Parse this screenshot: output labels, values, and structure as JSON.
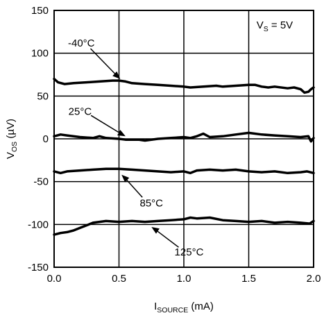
{
  "chart_data": {
    "type": "line",
    "xlabel": {
      "main": "I",
      "sub": "SOURCE",
      "unit": " (mA)"
    },
    "ylabel": {
      "main": "V",
      "sub": "OS",
      "unit": " (µV)"
    },
    "xlim": [
      0,
      2.0
    ],
    "ylim": [
      -150,
      150
    ],
    "x_ticks": [
      "0.0",
      "0.5",
      "1.0",
      "1.5",
      "2.0"
    ],
    "y_ticks": [
      "150",
      "100",
      "50",
      "0",
      "-50",
      "-100",
      "-150"
    ],
    "grid": true,
    "annotation": {
      "main": "V",
      "sub": "S",
      "rest": " = 5V"
    },
    "series": [
      {
        "name": "-40°C",
        "points": [
          [
            0.0,
            70
          ],
          [
            0.03,
            66
          ],
          [
            0.08,
            64
          ],
          [
            0.15,
            65
          ],
          [
            0.25,
            66
          ],
          [
            0.35,
            67
          ],
          [
            0.45,
            68
          ],
          [
            0.5,
            68
          ],
          [
            0.55,
            67
          ],
          [
            0.6,
            65
          ],
          [
            0.7,
            64
          ],
          [
            0.8,
            63
          ],
          [
            0.9,
            62
          ],
          [
            1.0,
            61
          ],
          [
            1.05,
            60
          ],
          [
            1.15,
            61
          ],
          [
            1.25,
            62
          ],
          [
            1.3,
            61
          ],
          [
            1.4,
            62
          ],
          [
            1.5,
            63
          ],
          [
            1.55,
            63
          ],
          [
            1.6,
            61
          ],
          [
            1.65,
            60
          ],
          [
            1.7,
            61
          ],
          [
            1.8,
            59
          ],
          [
            1.85,
            60
          ],
          [
            1.9,
            58
          ],
          [
            1.93,
            54
          ],
          [
            1.96,
            55
          ],
          [
            1.98,
            58
          ],
          [
            2.0,
            60
          ]
        ]
      },
      {
        "name": "25°C",
        "points": [
          [
            0.0,
            3
          ],
          [
            0.05,
            5
          ],
          [
            0.1,
            4
          ],
          [
            0.2,
            2
          ],
          [
            0.3,
            1
          ],
          [
            0.35,
            3
          ],
          [
            0.4,
            1
          ],
          [
            0.5,
            0
          ],
          [
            0.55,
            -1
          ],
          [
            0.65,
            -1
          ],
          [
            0.7,
            -2
          ],
          [
            0.8,
            0
          ],
          [
            0.9,
            1
          ],
          [
            1.0,
            2
          ],
          [
            1.05,
            1
          ],
          [
            1.1,
            3
          ],
          [
            1.15,
            6
          ],
          [
            1.2,
            2
          ],
          [
            1.3,
            3
          ],
          [
            1.4,
            5
          ],
          [
            1.5,
            7
          ],
          [
            1.6,
            5
          ],
          [
            1.7,
            4
          ],
          [
            1.8,
            3
          ],
          [
            1.9,
            2
          ],
          [
            1.96,
            3
          ],
          [
            1.98,
            -3
          ],
          [
            2.0,
            1
          ]
        ]
      },
      {
        "name": "85°C",
        "points": [
          [
            0.0,
            -38
          ],
          [
            0.05,
            -40
          ],
          [
            0.1,
            -38
          ],
          [
            0.2,
            -37
          ],
          [
            0.3,
            -36
          ],
          [
            0.4,
            -35
          ],
          [
            0.5,
            -35
          ],
          [
            0.6,
            -36
          ],
          [
            0.7,
            -37
          ],
          [
            0.8,
            -38
          ],
          [
            0.9,
            -39
          ],
          [
            1.0,
            -38
          ],
          [
            1.05,
            -40
          ],
          [
            1.1,
            -37
          ],
          [
            1.2,
            -36
          ],
          [
            1.3,
            -37
          ],
          [
            1.4,
            -36
          ],
          [
            1.5,
            -38
          ],
          [
            1.6,
            -39
          ],
          [
            1.7,
            -38
          ],
          [
            1.8,
            -40
          ],
          [
            1.9,
            -39
          ],
          [
            1.95,
            -38
          ],
          [
            2.0,
            -40
          ]
        ]
      },
      {
        "name": "125°C",
        "points": [
          [
            0.0,
            -112
          ],
          [
            0.05,
            -110
          ],
          [
            0.1,
            -109
          ],
          [
            0.15,
            -107
          ],
          [
            0.2,
            -104
          ],
          [
            0.25,
            -101
          ],
          [
            0.3,
            -98
          ],
          [
            0.4,
            -96
          ],
          [
            0.5,
            -97
          ],
          [
            0.6,
            -96
          ],
          [
            0.7,
            -97
          ],
          [
            0.8,
            -96
          ],
          [
            0.9,
            -95
          ],
          [
            1.0,
            -94
          ],
          [
            1.05,
            -92
          ],
          [
            1.1,
            -93
          ],
          [
            1.2,
            -92
          ],
          [
            1.3,
            -95
          ],
          [
            1.4,
            -96
          ],
          [
            1.5,
            -97
          ],
          [
            1.6,
            -96
          ],
          [
            1.7,
            -98
          ],
          [
            1.8,
            -97
          ],
          [
            1.9,
            -98
          ],
          [
            1.97,
            -99
          ],
          [
            2.0,
            -96
          ]
        ]
      }
    ],
    "series_labels": [
      {
        "text": "-40°C",
        "label_at": [
          0.21,
          112
        ],
        "arrow_to": [
          0.51,
          70
        ]
      },
      {
        "text": "25°C",
        "label_at": [
          0.2,
          32
        ],
        "arrow_to": [
          0.55,
          3
        ]
      },
      {
        "text": "85°C",
        "label_at": [
          0.75,
          -75
        ],
        "arrow_to": [
          0.52,
          -42
        ]
      },
      {
        "text": "125°C",
        "label_at": [
          1.04,
          -132
        ],
        "arrow_to": [
          0.75,
          -103
        ]
      }
    ]
  }
}
